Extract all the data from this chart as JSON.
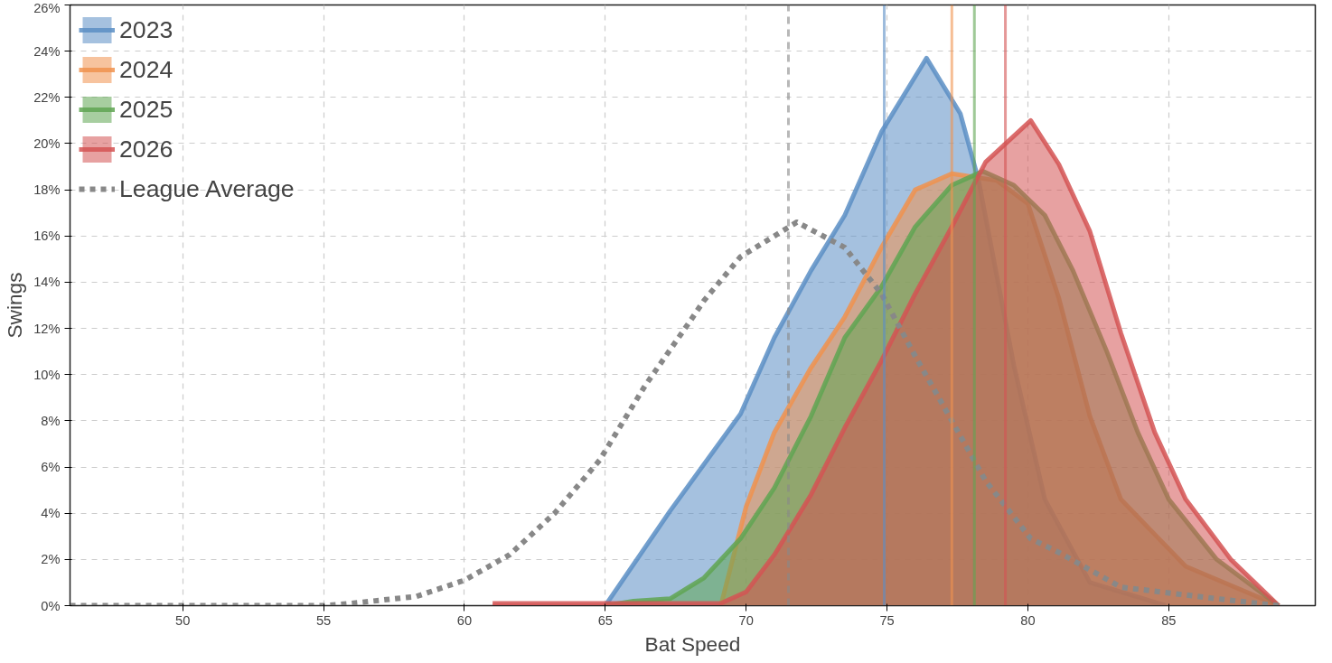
{
  "chart_data": {
    "type": "area",
    "xlabel": "Bat Speed",
    "ylabel": "Swings",
    "xlim": [
      46,
      90.2
    ],
    "ylim": [
      0,
      26
    ],
    "xticks": [
      50,
      55,
      60,
      65,
      70,
      75,
      80,
      85
    ],
    "yticks": [
      {
        "value": 0,
        "label": "0%"
      },
      {
        "value": 2,
        "label": "2%"
      },
      {
        "value": 4,
        "label": "4%"
      },
      {
        "value": 6,
        "label": "6%"
      },
      {
        "value": 8,
        "label": "8%"
      },
      {
        "value": 10,
        "label": "10%"
      },
      {
        "value": 12,
        "label": "12%"
      },
      {
        "value": 14,
        "label": "14%"
      },
      {
        "value": 16,
        "label": "16%"
      },
      {
        "value": 18,
        "label": "18%"
      },
      {
        "value": 20,
        "label": "20%"
      },
      {
        "value": 22,
        "label": "22%"
      },
      {
        "value": 24,
        "label": "24%"
      },
      {
        "value": 26,
        "label": "26%"
      }
    ],
    "grid": true,
    "legend": "top left",
    "series": [
      {
        "name": "2023",
        "color": "#5b8ec4",
        "x": [
          65,
          67.3,
          69.8,
          71.0,
          72.3,
          73.5,
          74.8,
          76.4,
          77.6,
          78.25,
          79.5,
          80.6,
          82.2,
          84.9
        ],
        "values": [
          0,
          4.1,
          8.3,
          11.6,
          14.5,
          16.9,
          20.5,
          23.7,
          21.3,
          18.4,
          10.4,
          4.6,
          1.0,
          0
        ]
      },
      {
        "name": "2024",
        "color": "#f0924e",
        "x": [
          69.1,
          70.0,
          71.0,
          72.3,
          73.5,
          74.8,
          76.0,
          77.3,
          78.9,
          80.0,
          81.1,
          82.2,
          83.3,
          85.6,
          88.9
        ],
        "values": [
          0,
          4.3,
          7.5,
          10.3,
          12.5,
          15.5,
          18.0,
          18.7,
          18.4,
          17.4,
          13.3,
          8.2,
          4.6,
          1.7,
          0
        ]
      },
      {
        "name": "2025",
        "color": "#5fa552",
        "x": [
          65,
          66,
          67.3,
          68.5,
          69.8,
          71.0,
          72.3,
          73.5,
          74.8,
          76.0,
          77.3,
          78.4,
          79.5,
          80.6,
          81.6,
          82.8,
          83.9,
          85.0,
          86.7,
          88.9
        ],
        "values": [
          0,
          0.2,
          0.3,
          1.2,
          2.9,
          5.1,
          8.2,
          11.6,
          13.8,
          16.4,
          18.2,
          18.8,
          18.2,
          16.9,
          14.5,
          11.0,
          7.5,
          4.6,
          2.0,
          0
        ]
      },
      {
        "name": "2026",
        "color": "#d35454",
        "x": [
          61,
          63,
          65,
          67,
          69.1,
          70.0,
          71.0,
          72.3,
          73.5,
          74.8,
          76.0,
          77.3,
          78.5,
          80.1,
          81.1,
          82.2,
          83.3,
          84.5,
          85.6,
          87.2,
          88.9
        ],
        "values": [
          0.1,
          0.1,
          0.1,
          0.1,
          0.1,
          0.6,
          2.2,
          4.8,
          7.7,
          10.6,
          13.5,
          16.4,
          19.2,
          21.0,
          19.1,
          16.2,
          11.8,
          7.5,
          4.6,
          2.0,
          0
        ]
      },
      {
        "name": "League Average",
        "type": "line",
        "line_style": "dotted",
        "color": "#888888",
        "x": [
          46,
          50,
          55,
          56,
          58.3,
          60,
          61.6,
          63.2,
          64.8,
          66.4,
          68.0,
          68.5,
          69.8,
          71.8,
          73.5,
          74.8,
          76.0,
          77.3,
          78.5,
          80.1,
          81.1,
          83.3,
          86.7,
          88.9
        ],
        "values": [
          0,
          0,
          0,
          0.1,
          0.4,
          1.1,
          2.2,
          4.0,
          6.3,
          9.5,
          12.3,
          13.2,
          15.1,
          16.6,
          15.5,
          13.5,
          10.8,
          8.0,
          5.4,
          2.9,
          2.3,
          0.8,
          0.3,
          0
        ]
      }
    ],
    "ref_lines": [
      {
        "axis": "x",
        "value": 71.5,
        "color": "#888888",
        "line_style": "dashed"
      },
      {
        "axis": "x",
        "value": 74.9,
        "color": "#5b8ec4"
      },
      {
        "axis": "x",
        "value": 77.3,
        "color": "#f0924e"
      },
      {
        "axis": "x",
        "value": 78.1,
        "color": "#5fa552"
      },
      {
        "axis": "x",
        "value": 79.2,
        "color": "#d35454"
      }
    ]
  }
}
